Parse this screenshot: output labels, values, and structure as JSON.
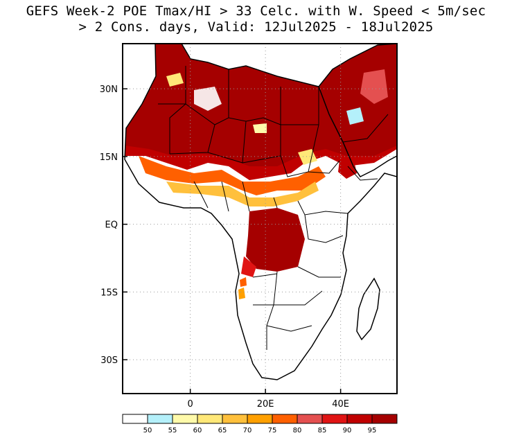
{
  "title": {
    "line1": "GEFS Week-2 POE Tmax/HI > 33 Celc. with W. Speed < 5m/sec",
    "line2": "> 2 Cons. days, Valid: 12Jul2025 - 18Jul2025"
  },
  "axes": {
    "lat_ticks": [
      {
        "value": 30,
        "label": "30N"
      },
      {
        "value": 15,
        "label": "15N"
      },
      {
        "value": 0,
        "label": "EQ"
      },
      {
        "value": -15,
        "label": "15S"
      },
      {
        "value": -30,
        "label": "30S"
      }
    ],
    "lon_ticks": [
      {
        "value": 0,
        "label": "0"
      },
      {
        "value": 20,
        "label": "20E"
      },
      {
        "value": 40,
        "label": "40E"
      }
    ],
    "lon_range": [
      -18,
      55
    ],
    "lat_range": [
      -37.5,
      40
    ]
  },
  "colorbar": {
    "colors": [
      "#ffffff",
      "#b4f0fa",
      "#fffaaa",
      "#ffe878",
      "#ffc03c",
      "#ffa000",
      "#ff6000",
      "#e45050",
      "#e01414",
      "#c00000",
      "#a50000"
    ],
    "labels": [
      "50",
      "55",
      "60",
      "65",
      "70",
      "75",
      "80",
      "85",
      "90",
      "95"
    ]
  }
}
